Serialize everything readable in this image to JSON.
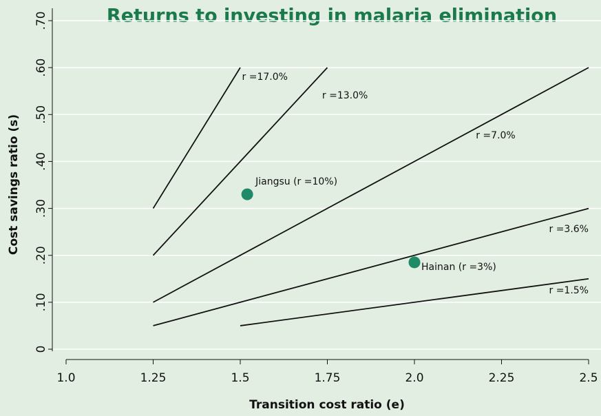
{
  "chart_data": {
    "type": "line",
    "title": "Returns to investing in malaria elimination",
    "x_label": "Transition cost ratio (e)",
    "y_label": "Cost savings ratio (s)",
    "xlim": [
      1.0,
      2.5
    ],
    "ylim": [
      0,
      0.7
    ],
    "xticks": [
      {
        "value": 1,
        "label": "1.0"
      },
      1.25,
      1.5,
      1.75,
      {
        "value": 2,
        "label": "2.0"
      },
      2.25,
      2.5
    ],
    "yticks": [
      0,
      {
        "value": 0.1,
        "label": ".10"
      },
      {
        "value": 0.2,
        "label": ".20"
      },
      {
        "value": 0.3,
        "label": ".30"
      },
      {
        "value": 0.4,
        "label": ".40"
      },
      {
        "value": 0.5,
        "label": ".50"
      },
      {
        "value": 0.6,
        "label": ".60"
      },
      {
        "value": 0.7,
        "label": ".70"
      }
    ],
    "grid": true,
    "series": [
      {
        "name": "r =17.0%",
        "color": "#111111",
        "x": [
          1.25,
          1.5
        ],
        "values": [
          0.3,
          0.6
        ]
      },
      {
        "name": "r =13.0%",
        "color": "#111111",
        "x": [
          1.25,
          1.75
        ],
        "values": [
          0.2,
          0.6
        ]
      },
      {
        "name": "r =7.0%",
        "color": "#111111",
        "x": [
          1.25,
          2.5
        ],
        "values": [
          0.1,
          0.6
        ]
      },
      {
        "name": "r =3.6%",
        "color": "#111111",
        "x": [
          1.25,
          2.5
        ],
        "values": [
          0.05,
          0.3
        ]
      },
      {
        "name": "r =1.5%",
        "color": "#111111",
        "x": [
          1.5,
          2.5
        ],
        "values": [
          0.05,
          0.15
        ]
      }
    ],
    "points": [
      {
        "label": "Jiangsu (r =10%)",
        "x": 1.52,
        "y": 0.33,
        "color": "#1f8a68"
      },
      {
        "label": "Hainan (r =3%)",
        "x": 2.0,
        "y": 0.185,
        "color": "#1f8a68"
      }
    ]
  }
}
